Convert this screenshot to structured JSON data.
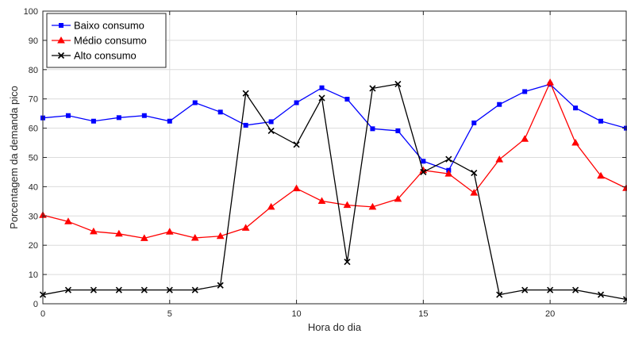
{
  "chart_data": {
    "type": "line",
    "title": "",
    "xlabel": "Hora do dia",
    "ylabel": "Porcentagem da demanda pico",
    "xlim": [
      0,
      23
    ],
    "ylim": [
      0,
      100
    ],
    "xticks": [
      0,
      5,
      10,
      15,
      20
    ],
    "yticks": [
      0,
      10,
      20,
      30,
      40,
      50,
      60,
      70,
      80,
      90,
      100
    ],
    "grid": true,
    "legend_position": "top-left",
    "x": [
      0,
      1,
      2,
      3,
      4,
      5,
      6,
      7,
      8,
      9,
      10,
      11,
      12,
      13,
      14,
      15,
      16,
      17,
      18,
      19,
      20,
      21,
      22,
      23
    ],
    "series": [
      {
        "name": "Baixo consumo",
        "color": "#0000ff",
        "marker": "square",
        "values": [
          63.5,
          64.3,
          62.4,
          63.6,
          64.3,
          62.4,
          68.7,
          65.5,
          61.0,
          62.2,
          68.7,
          73.8,
          69.9,
          59.8,
          59.1,
          48.7,
          45.6,
          61.8,
          68.1,
          72.5,
          75.0,
          66.9,
          62.4,
          60.0
        ]
      },
      {
        "name": "Médio consumo",
        "color": "#ff0000",
        "marker": "triangle",
        "values": [
          30.3,
          28.1,
          24.7,
          23.9,
          22.4,
          24.6,
          22.5,
          23.1,
          25.9,
          33.1,
          39.4,
          35.1,
          33.7,
          33.1,
          35.8,
          45.6,
          44.4,
          37.9,
          49.3,
          56.3,
          75.6,
          55.0,
          43.7,
          39.5
        ]
      },
      {
        "name": "Alto consumo",
        "color": "#000000",
        "marker": "x",
        "values": [
          3.1,
          4.7,
          4.7,
          4.7,
          4.7,
          4.7,
          4.7,
          6.3,
          71.9,
          59.1,
          54.4,
          70.3,
          14.3,
          73.6,
          75.1,
          45.0,
          49.4,
          44.7,
          3.1,
          4.7,
          4.7,
          4.7,
          3.1,
          1.5
        ]
      }
    ]
  }
}
